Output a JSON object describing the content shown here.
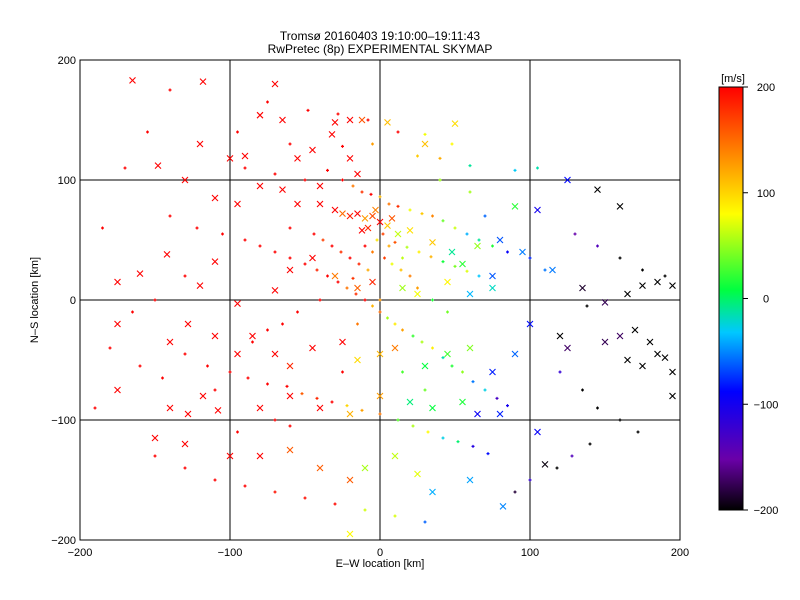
{
  "chart_data": {
    "type": "scatter",
    "title": "Tromsø 20160403 19:10:00–19:11:43",
    "subtitle": "RwPretec (8p) EXPERIMENTAL SKYMAP",
    "xlabel": "E–W location [km]",
    "ylabel": "N–S location [km]",
    "xlim": [
      -200,
      200
    ],
    "ylim": [
      -200,
      200
    ],
    "x_ticks": [
      "−200",
      "−100",
      "0",
      "100",
      "200"
    ],
    "y_ticks": [
      "−200",
      "−100",
      "0",
      "100",
      "200"
    ],
    "grid": true,
    "colorbar": {
      "label": "[m/s]",
      "range": [
        -200,
        200
      ],
      "ticks": [
        "200",
        "100",
        "0",
        "−100",
        "−200"
      ],
      "colormap": "rainbow (black → violet → blue → cyan → green → yellow → orange → red)"
    },
    "markers": [
      "+",
      "x"
    ],
    "series": [
      {
        "marker": "x",
        "points": [
          [
            -165,
            183
          ],
          [
            -118,
            182
          ],
          [
            -80,
            154
          ],
          [
            -12,
            150
          ],
          [
            -30,
            148
          ],
          [
            -20,
            150
          ],
          [
            -32,
            138
          ],
          [
            -45,
            125
          ],
          [
            -65,
            150
          ],
          [
            -120,
            130
          ],
          [
            -100,
            118
          ],
          [
            -55,
            118
          ],
          [
            -20,
            118
          ],
          [
            -15,
            105
          ],
          [
            -130,
            100
          ],
          [
            -110,
            85
          ],
          [
            -95,
            80
          ],
          [
            -80,
            95
          ],
          [
            -65,
            92
          ],
          [
            -55,
            80
          ],
          [
            -40,
            80
          ],
          [
            -30,
            75
          ],
          [
            -25,
            72
          ],
          [
            -20,
            70
          ],
          [
            -15,
            72
          ],
          [
            -10,
            68
          ],
          [
            -5,
            70
          ],
          [
            0,
            65
          ],
          [
            5,
            62
          ],
          [
            -8,
            60
          ],
          [
            -12,
            58
          ],
          [
            -3,
            75
          ],
          [
            8,
            68
          ],
          [
            12,
            55
          ],
          [
            20,
            58
          ],
          [
            35,
            48
          ],
          [
            48,
            40
          ],
          [
            55,
            30
          ],
          [
            65,
            45
          ],
          [
            80,
            50
          ],
          [
            95,
            40
          ],
          [
            90,
            78
          ],
          [
            105,
            75
          ],
          [
            125,
            100
          ],
          [
            145,
            92
          ],
          [
            160,
            78
          ],
          [
            -160,
            22
          ],
          [
            -175,
            15
          ],
          [
            -142,
            38
          ],
          [
            -110,
            32
          ],
          [
            -120,
            12
          ],
          [
            -95,
            -3
          ],
          [
            -70,
            8
          ],
          [
            -60,
            25
          ],
          [
            -45,
            35
          ],
          [
            -30,
            20
          ],
          [
            -15,
            10
          ],
          [
            -5,
            15
          ],
          [
            15,
            10
          ],
          [
            25,
            5
          ],
          [
            45,
            15
          ],
          [
            60,
            5
          ],
          [
            75,
            10
          ],
          [
            115,
            25
          ],
          [
            135,
            10
          ],
          [
            150,
            -2
          ],
          [
            165,
            5
          ],
          [
            175,
            12
          ],
          [
            185,
            15
          ],
          [
            195,
            12
          ],
          [
            -175,
            -20
          ],
          [
            -140,
            -35
          ],
          [
            -128,
            -20
          ],
          [
            -110,
            -30
          ],
          [
            -95,
            -45
          ],
          [
            -85,
            -30
          ],
          [
            -70,
            -45
          ],
          [
            -60,
            -55
          ],
          [
            -45,
            -40
          ],
          [
            -25,
            -35
          ],
          [
            -15,
            -50
          ],
          [
            0,
            -45
          ],
          [
            10,
            -40
          ],
          [
            30,
            -55
          ],
          [
            45,
            -45
          ],
          [
            60,
            -40
          ],
          [
            75,
            -60
          ],
          [
            90,
            -45
          ],
          [
            120,
            -30
          ],
          [
            125,
            -40
          ],
          [
            150,
            -35
          ],
          [
            165,
            -50
          ],
          [
            175,
            -55
          ],
          [
            190,
            -48
          ],
          [
            195,
            -60
          ],
          [
            185,
            -45
          ],
          [
            160,
            -30
          ],
          [
            170,
            -25
          ],
          [
            180,
            -35
          ],
          [
            195,
            -80
          ],
          [
            -175,
            -75
          ],
          [
            -140,
            -90
          ],
          [
            -128,
            -95
          ],
          [
            -118,
            -80
          ],
          [
            -108,
            -92
          ],
          [
            -80,
            -90
          ],
          [
            -60,
            -80
          ],
          [
            -40,
            -90
          ],
          [
            -20,
            -95
          ],
          [
            0,
            -80
          ],
          [
            20,
            -85
          ],
          [
            35,
            -90
          ],
          [
            55,
            -85
          ],
          [
            65,
            -95
          ],
          [
            80,
            -95
          ],
          [
            105,
            -110
          ],
          [
            110,
            -137
          ],
          [
            -150,
            -115
          ],
          [
            -130,
            -120
          ],
          [
            -100,
            -130
          ],
          [
            -80,
            -130
          ],
          [
            -60,
            -125
          ],
          [
            -40,
            -140
          ],
          [
            -20,
            -150
          ],
          [
            -10,
            -140
          ],
          [
            10,
            -130
          ],
          [
            25,
            -145
          ],
          [
            35,
            -160
          ],
          [
            60,
            -150
          ],
          [
            82,
            -172
          ],
          [
            -20,
            -195
          ],
          [
            50,
            147
          ],
          [
            5,
            148
          ],
          [
            -90,
            120
          ],
          [
            -148,
            112
          ],
          [
            -70,
            180
          ],
          [
            30,
            130
          ],
          [
            -40,
            95
          ],
          [
            75,
            20
          ],
          [
            100,
            -20
          ]
        ]
      },
      {
        "marker": "+",
        "points": [
          [
            -140,
            175
          ],
          [
            -75,
            165
          ],
          [
            -48,
            158
          ],
          [
            -28,
            155
          ],
          [
            -8,
            150
          ],
          [
            12,
            140
          ],
          [
            30,
            138
          ],
          [
            48,
            130
          ],
          [
            -95,
            140
          ],
          [
            -60,
            130
          ],
          [
            -25,
            128
          ],
          [
            -5,
            130
          ],
          [
            25,
            120
          ],
          [
            40,
            118
          ],
          [
            60,
            112
          ],
          [
            90,
            108
          ],
          [
            105,
            110
          ],
          [
            -90,
            110
          ],
          [
            -70,
            105
          ],
          [
            -50,
            100
          ],
          [
            -35,
            108
          ],
          [
            -25,
            100
          ],
          [
            -18,
            95
          ],
          [
            -12,
            90
          ],
          [
            -6,
            88
          ],
          [
            0,
            86
          ],
          [
            6,
            80
          ],
          [
            12,
            78
          ],
          [
            20,
            75
          ],
          [
            28,
            72
          ],
          [
            35,
            70
          ],
          [
            42,
            66
          ],
          [
            50,
            60
          ],
          [
            58,
            55
          ],
          [
            66,
            50
          ],
          [
            75,
            45
          ],
          [
            85,
            40
          ],
          [
            100,
            35
          ],
          [
            110,
            25
          ],
          [
            -140,
            70
          ],
          [
            -122,
            60
          ],
          [
            -105,
            55
          ],
          [
            -90,
            50
          ],
          [
            -80,
            45
          ],
          [
            -70,
            40
          ],
          [
            -60,
            35
          ],
          [
            -50,
            30
          ],
          [
            -42,
            25
          ],
          [
            -35,
            20
          ],
          [
            -28,
            15
          ],
          [
            -22,
            10
          ],
          [
            -16,
            5
          ],
          [
            -10,
            0
          ],
          [
            -5,
            -5
          ],
          [
            0,
            -10
          ],
          [
            5,
            -15
          ],
          [
            10,
            -20
          ],
          [
            15,
            -25
          ],
          [
            22,
            -30
          ],
          [
            28,
            -35
          ],
          [
            35,
            -40
          ],
          [
            42,
            -48
          ],
          [
            48,
            -55
          ],
          [
            55,
            -60
          ],
          [
            62,
            -68
          ],
          [
            70,
            -75
          ],
          [
            78,
            -82
          ],
          [
            85,
            -88
          ],
          [
            -180,
            -40
          ],
          [
            -160,
            -55
          ],
          [
            -145,
            -65
          ],
          [
            -130,
            -45
          ],
          [
            -115,
            -55
          ],
          [
            -100,
            -60
          ],
          [
            -88,
            -65
          ],
          [
            -75,
            -70
          ],
          [
            -62,
            -72
          ],
          [
            -52,
            -78
          ],
          [
            -42,
            -82
          ],
          [
            -32,
            -85
          ],
          [
            -22,
            -88
          ],
          [
            -12,
            -92
          ],
          [
            0,
            -95
          ],
          [
            12,
            -100
          ],
          [
            22,
            -105
          ],
          [
            32,
            -110
          ],
          [
            42,
            -115
          ],
          [
            52,
            -118
          ],
          [
            62,
            -122
          ],
          [
            72,
            -128
          ],
          [
            -150,
            -130
          ],
          [
            -130,
            -140
          ],
          [
            -110,
            -150
          ],
          [
            -90,
            -155
          ],
          [
            -70,
            -160
          ],
          [
            -50,
            -165
          ],
          [
            -30,
            -170
          ],
          [
            -10,
            -175
          ],
          [
            10,
            -180
          ],
          [
            30,
            -185
          ],
          [
            -5,
            40
          ],
          [
            3,
            35
          ],
          [
            8,
            30
          ],
          [
            14,
            25
          ],
          [
            20,
            20
          ],
          [
            -8,
            25
          ],
          [
            -14,
            30
          ],
          [
            -20,
            35
          ],
          [
            -26,
            40
          ],
          [
            -32,
            45
          ],
          [
            -38,
            50
          ],
          [
            -44,
            55
          ],
          [
            10,
            48
          ],
          [
            18,
            44
          ],
          [
            26,
            40
          ],
          [
            34,
            36
          ],
          [
            42,
            32
          ],
          [
            50,
            28
          ],
          [
            58,
            24
          ],
          [
            66,
            20
          ],
          [
            2,
            55
          ],
          [
            -2,
            50
          ],
          [
            6,
            45
          ],
          [
            -10,
            45
          ],
          [
            15,
            35
          ],
          [
            -18,
            18
          ],
          [
            25,
            10
          ],
          [
            35,
            0
          ],
          [
            45,
            -10
          ],
          [
            -40,
            0
          ],
          [
            -55,
            -10
          ],
          [
            -65,
            -20
          ],
          [
            -75,
            -25
          ],
          [
            -85,
            -35
          ],
          [
            120,
            -60
          ],
          [
            135,
            -75
          ],
          [
            145,
            -90
          ],
          [
            160,
            -100
          ],
          [
            172,
            -110
          ],
          [
            140,
            -120
          ],
          [
            128,
            -130
          ],
          [
            118,
            -140
          ],
          [
            100,
            -150
          ],
          [
            90,
            -160
          ],
          [
            130,
            55
          ],
          [
            145,
            45
          ],
          [
            160,
            35
          ],
          [
            175,
            25
          ],
          [
            190,
            20
          ],
          [
            138,
            -5
          ],
          [
            -190,
            -90
          ],
          [
            -185,
            60
          ],
          [
            -170,
            110
          ],
          [
            -155,
            140
          ],
          [
            -60,
            60
          ],
          [
            -15,
            -20
          ],
          [
            -25,
            -60
          ],
          [
            15,
            -60
          ],
          [
            30,
            -75
          ],
          [
            -70,
            -100
          ],
          [
            -95,
            -110
          ],
          [
            -110,
            -75
          ],
          [
            -60,
            -105
          ],
          [
            40,
            100
          ],
          [
            60,
            90
          ],
          [
            70,
            70
          ],
          [
            -130,
            20
          ],
          [
            -150,
            0
          ],
          [
            -165,
            -10
          ],
          [
            0,
            0
          ]
        ]
      }
    ]
  }
}
